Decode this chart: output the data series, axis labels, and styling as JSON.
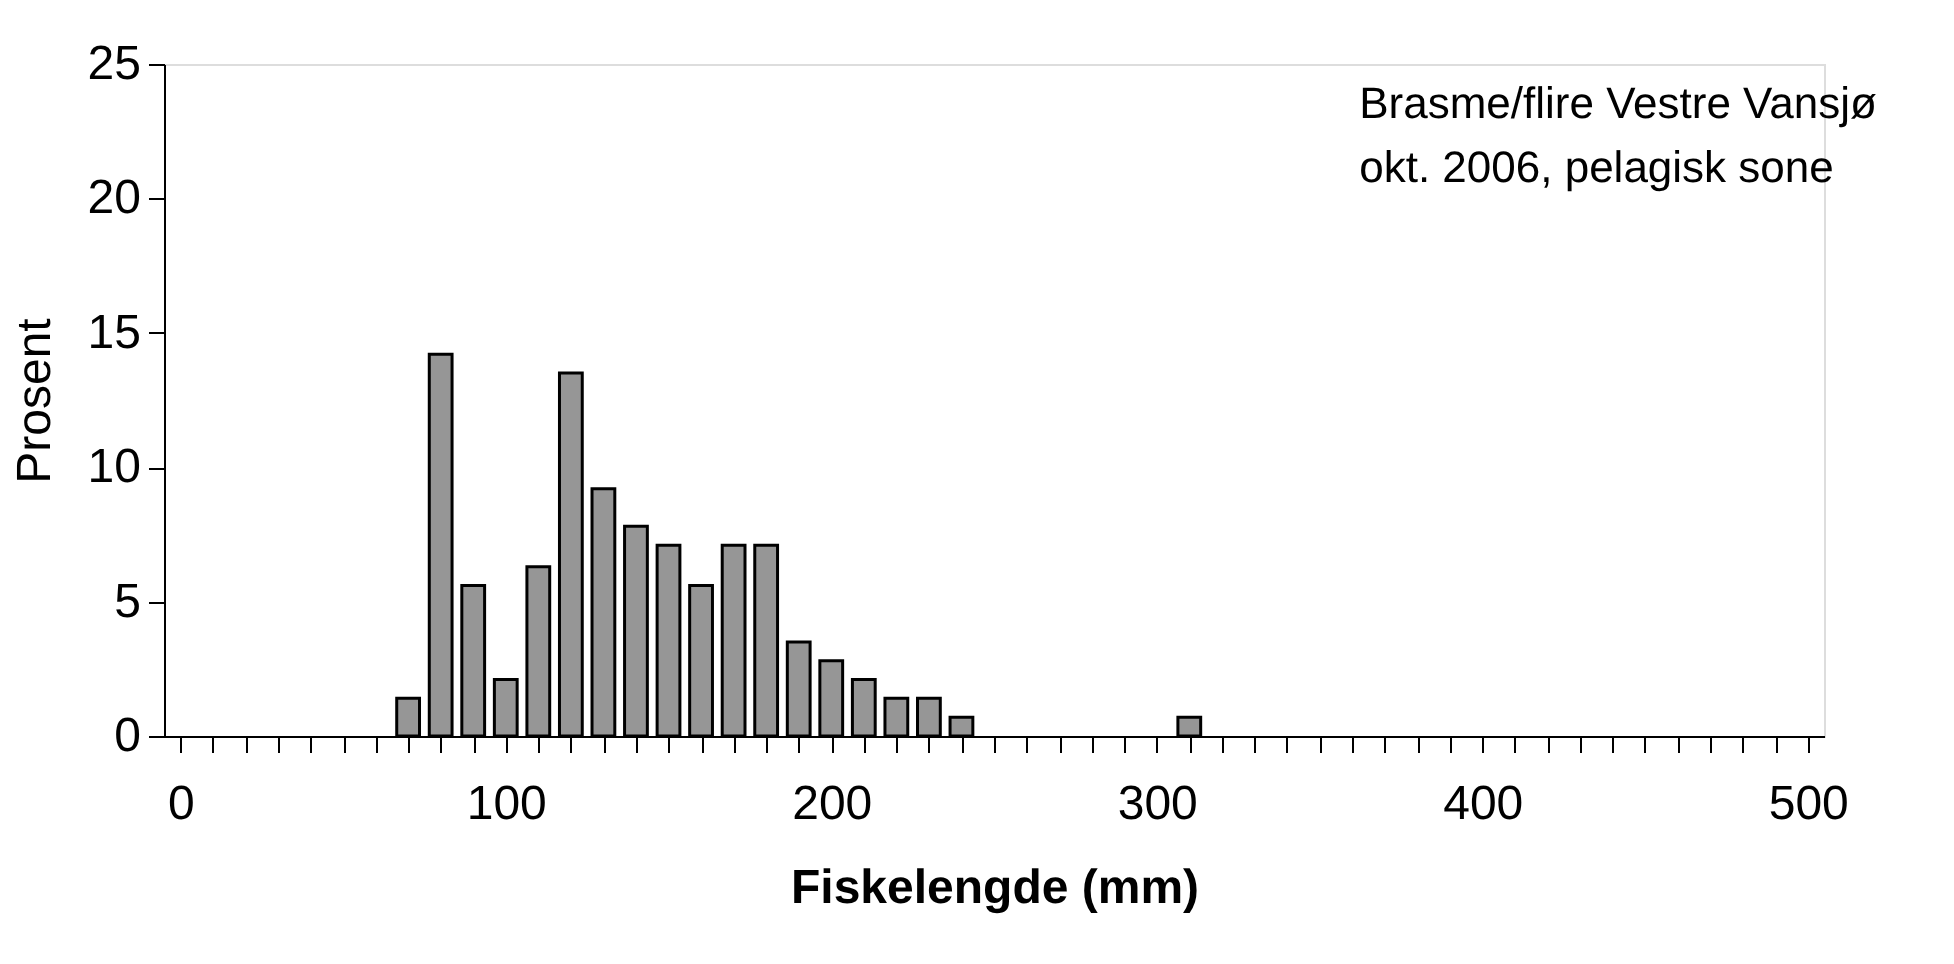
{
  "chart_data": {
    "type": "bar",
    "xlabel": "Fiskelengde (mm)",
    "ylabel": "Prosent",
    "annotations": [
      "Brasme/flire Vestre Vansjø",
      "okt. 2006, pelagisk sone"
    ],
    "x": [
      70,
      80,
      90,
      100,
      110,
      120,
      130,
      140,
      150,
      160,
      170,
      180,
      190,
      200,
      210,
      220,
      230,
      240,
      310
    ],
    "values": [
      1.4,
      14.2,
      5.6,
      2.1,
      6.3,
      13.5,
      9.2,
      7.8,
      7.1,
      5.6,
      7.1,
      7.1,
      3.5,
      2.8,
      2.1,
      1.4,
      1.4,
      0.7,
      0.7
    ],
    "color": "#969696",
    "xlim": [
      -5,
      505
    ],
    "xticks": [
      0,
      {
        "value": 10,
        "label": null
      },
      {
        "value": 20,
        "label": null
      },
      {
        "value": 30,
        "label": null
      },
      {
        "value": 40,
        "label": null
      },
      {
        "value": 50,
        "label": null
      },
      {
        "value": 60,
        "label": null
      },
      {
        "value": 70,
        "label": null
      },
      {
        "value": 80,
        "label": null
      },
      {
        "value": 90,
        "label": null
      },
      100,
      {
        "value": 110,
        "label": null
      },
      {
        "value": 120,
        "label": null
      },
      {
        "value": 130,
        "label": null
      },
      {
        "value": 140,
        "label": null
      },
      {
        "value": 150,
        "label": null
      },
      {
        "value": 160,
        "label": null
      },
      {
        "value": 170,
        "label": null
      },
      {
        "value": 180,
        "label": null
      },
      {
        "value": 190,
        "label": null
      },
      200,
      {
        "value": 210,
        "label": null
      },
      {
        "value": 220,
        "label": null
      },
      {
        "value": 230,
        "label": null
      },
      {
        "value": 240,
        "label": null
      },
      {
        "value": 250,
        "label": null
      },
      {
        "value": 260,
        "label": null
      },
      {
        "value": 270,
        "label": null
      },
      {
        "value": 280,
        "label": null
      },
      {
        "value": 290,
        "label": null
      },
      300,
      {
        "value": 310,
        "label": null
      },
      {
        "value": 320,
        "label": null
      },
      {
        "value": 330,
        "label": null
      },
      {
        "value": 340,
        "label": null
      },
      {
        "value": 350,
        "label": null
      },
      {
        "value": 360,
        "label": null
      },
      {
        "value": 370,
        "label": null
      },
      {
        "value": 380,
        "label": null
      },
      {
        "value": 390,
        "label": null
      },
      400,
      {
        "value": 410,
        "label": null
      },
      {
        "value": 420,
        "label": null
      },
      {
        "value": 430,
        "label": null
      },
      {
        "value": 440,
        "label": null
      },
      {
        "value": 450,
        "label": null
      },
      {
        "value": 460,
        "label": null
      },
      {
        "value": 470,
        "label": null
      },
      {
        "value": 480,
        "label": null
      },
      {
        "value": 490,
        "label": null
      },
      500
    ],
    "ylim": [
      0,
      25
    ],
    "yticks": [
      0,
      5,
      10,
      15,
      20,
      25
    ],
    "grid": false
  }
}
